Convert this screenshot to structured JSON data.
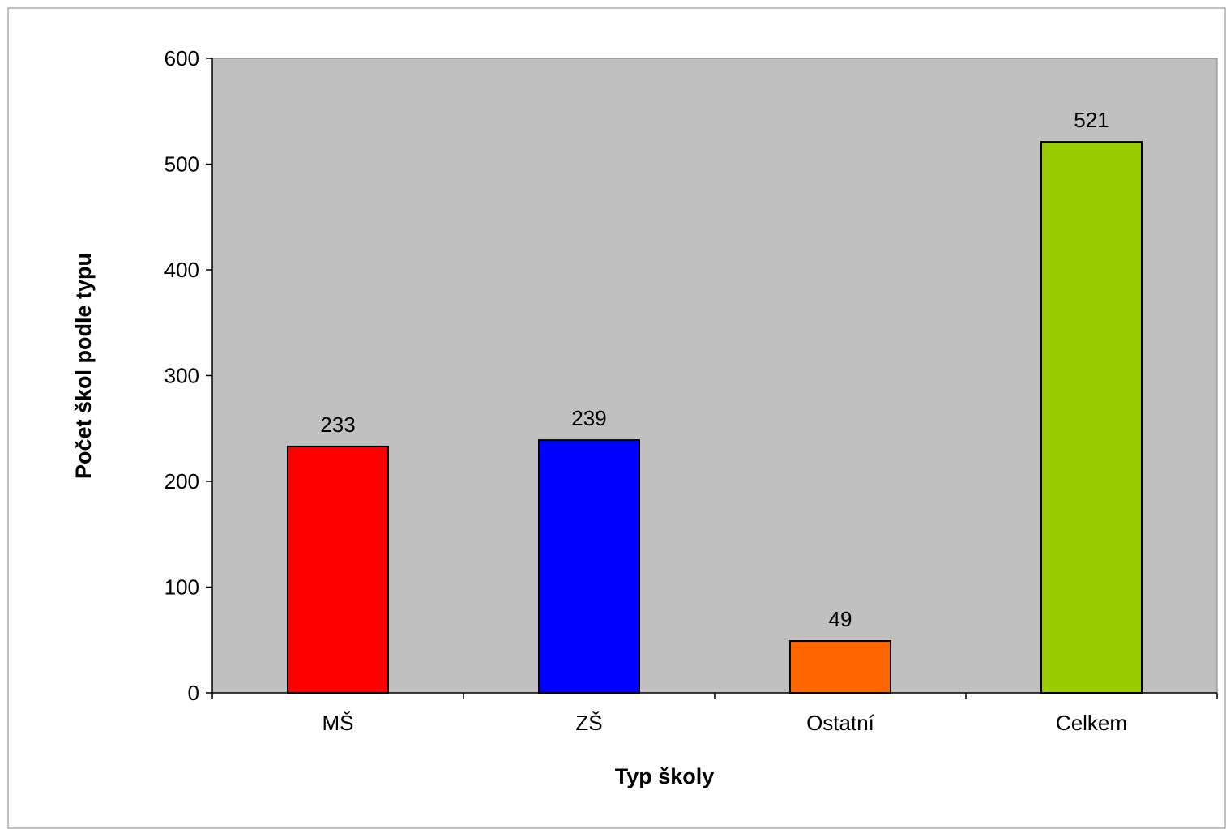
{
  "chart_data": {
    "type": "bar",
    "categories": [
      "MŠ",
      "ZŠ",
      "Ostatní",
      "Celkem"
    ],
    "values": [
      233,
      239,
      49,
      521
    ],
    "data_labels": [
      "233",
      "239",
      "49",
      "521"
    ],
    "bar_colors": [
      "#ff0000",
      "#0000ff",
      "#ff6600",
      "#99cc00"
    ],
    "xlabel": "Typ školy",
    "ylabel": "Počet škol podle typu",
    "ylim": [
      0,
      600
    ],
    "yticks": [
      0,
      100,
      200,
      300,
      400,
      500,
      600
    ],
    "ytick_labels": [
      "0",
      "100",
      "200",
      "300",
      "400",
      "500",
      "600"
    ],
    "grid": false,
    "plot_background": "#c0c0c0",
    "legend": "none"
  }
}
